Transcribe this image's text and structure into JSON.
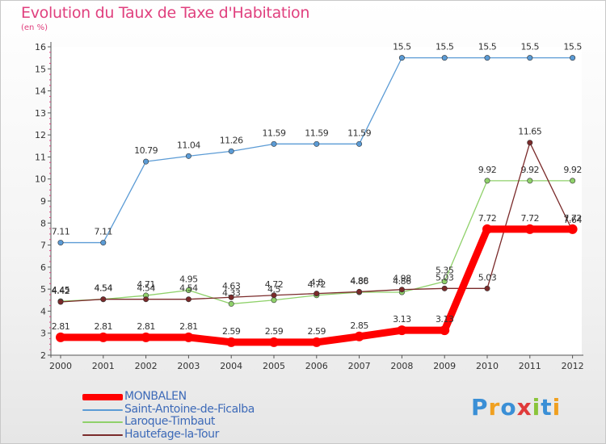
{
  "header": {
    "title": "Evolution du Taux de Taxe d'Habitation",
    "subtitle": "(en %)"
  },
  "chart_data": {
    "type": "line",
    "title": "Evolution du Taux de Taxe d'Habitation",
    "ylabel": "(en %)",
    "xlabel": "",
    "x": [
      "2000",
      "2001",
      "2002",
      "2003",
      "2004",
      "2005",
      "2006",
      "2007",
      "2008",
      "2009",
      "2010",
      "2011",
      "2012"
    ],
    "ylim": [
      2,
      16
    ],
    "yticks": [
      "2",
      "3",
      "4",
      "5",
      "6",
      "7",
      "8",
      "9",
      "10",
      "11",
      "12",
      "13",
      "14",
      "15",
      "16"
    ],
    "grid": false,
    "legend_position": "bottom-left",
    "series": [
      {
        "name": "Saint-Antoine-de-Ficalba",
        "color": "#5b9bd5",
        "values": [
          7.11,
          7.11,
          10.79,
          11.04,
          11.26,
          11.59,
          11.59,
          11.59,
          15.5,
          15.5,
          15.5,
          15.5,
          15.5
        ],
        "labels": [
          "7.11",
          "7.11",
          "10.79",
          "11.04",
          "11.26",
          "11.59",
          "11.59",
          "11.59",
          "15.5",
          "15.5",
          "15.5",
          "15.5",
          "15.5"
        ]
      },
      {
        "name": "Laroque-Timbaut",
        "color": "#8fd16a",
        "values": [
          4.45,
          4.54,
          4.71,
          4.95,
          4.33,
          4.5,
          4.72,
          4.86,
          4.86,
          5.35,
          9.92,
          9.92,
          9.92
        ],
        "labels": [
          "4.45",
          "4.54",
          "4.71",
          "4.95",
          "4.33",
          "4.5",
          "4.72",
          "4.86",
          "4.86",
          "5.35",
          "9.92",
          "9.92",
          "9.92"
        ]
      },
      {
        "name": "Hautefage-la-Tour",
        "color": "#7a2a2a",
        "values": [
          4.42,
          4.54,
          4.54,
          4.54,
          4.63,
          4.72,
          4.8,
          4.88,
          4.98,
          5.03,
          5.03,
          11.65,
          7.64
        ],
        "labels": [
          "4.42",
          "4.54",
          "4.54",
          "4.54",
          "4.63",
          "4.72",
          "4.8",
          "4.88",
          "4.98",
          "5.03",
          "5.03",
          "11.65",
          "7.64"
        ]
      },
      {
        "name": "MONBALEN",
        "color": "#ff0000",
        "values": [
          2.81,
          2.81,
          2.81,
          2.81,
          2.59,
          2.59,
          2.59,
          2.85,
          3.13,
          3.13,
          7.72,
          7.72,
          7.72
        ],
        "labels": [
          "2.81",
          "2.81",
          "2.81",
          "2.81",
          "2.59",
          "2.59",
          "2.59",
          "2.85",
          "3.13",
          "3.13",
          "7.72",
          "7.72",
          "7.72"
        ]
      }
    ]
  },
  "legend": [
    {
      "name": "MONBALEN",
      "color": "#ff0000"
    },
    {
      "name": "Saint-Antoine-de-Ficalba",
      "color": "#5b9bd5"
    },
    {
      "name": "Laroque-Timbaut",
      "color": "#8fd16a"
    },
    {
      "name": "Hautefage-la-Tour",
      "color": "#7a2a2a"
    }
  ],
  "logo": {
    "letters": [
      "P",
      "r",
      "o",
      "x",
      "i",
      "t",
      "i"
    ],
    "colors": [
      "#3a8fd6",
      "#f0a020",
      "#3a8fd6",
      "#e03a3a",
      "#8ac43a",
      "#3a8fd6",
      "#f0a020"
    ]
  }
}
